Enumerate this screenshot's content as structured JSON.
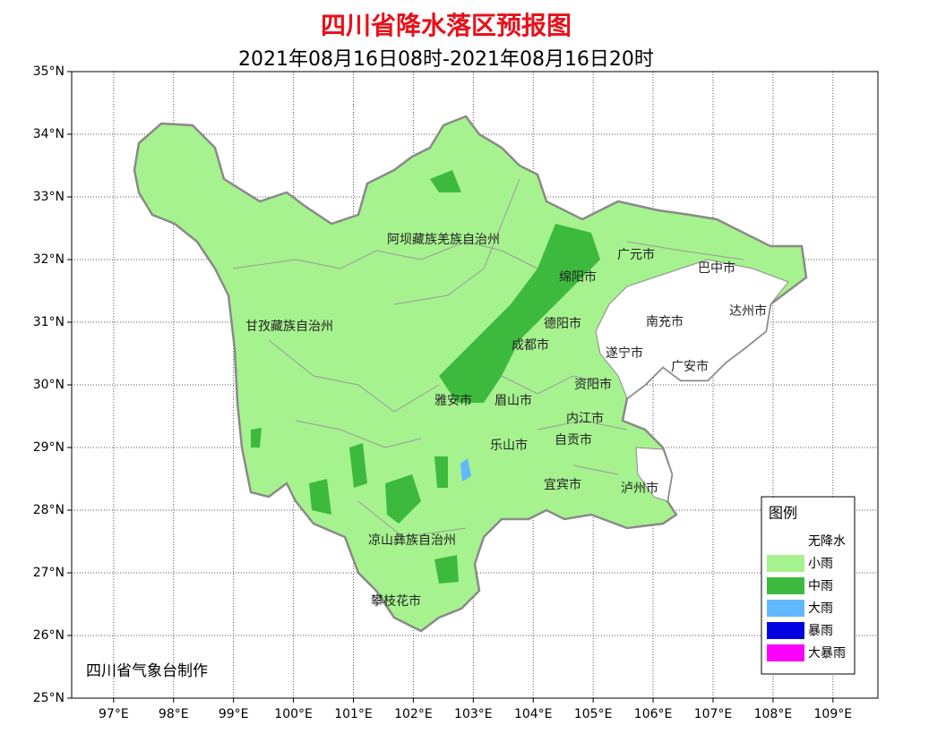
{
  "header": {
    "title": "四川省降水落区预报图",
    "subtitle": "2021年08月16日08时-2021年08月16日20时"
  },
  "map": {
    "xlim": [
      96.3,
      109.75
    ],
    "ylim": [
      25,
      35
    ],
    "grid": true,
    "xticks": [
      {
        "value": 97,
        "label": "97°E"
      },
      {
        "value": 98,
        "label": "98°E"
      },
      {
        "value": 99,
        "label": "99°E"
      },
      {
        "value": 100,
        "label": "100°E"
      },
      {
        "value": 101,
        "label": "101°E"
      },
      {
        "value": 102,
        "label": "102°E"
      },
      {
        "value": 103,
        "label": "103°E"
      },
      {
        "value": 104,
        "label": "104°E"
      },
      {
        "value": 105,
        "label": "105°E"
      },
      {
        "value": 106,
        "label": "106°E"
      },
      {
        "value": 107,
        "label": "107°E"
      },
      {
        "value": 108,
        "label": "108°E"
      },
      {
        "value": 109,
        "label": "109°E"
      }
    ],
    "yticks": [
      {
        "value": 25,
        "label": "25°N"
      },
      {
        "value": 26,
        "label": "26°N"
      },
      {
        "value": 27,
        "label": "27°N"
      },
      {
        "value": 28,
        "label": "28°N"
      },
      {
        "value": 29,
        "label": "29°N"
      },
      {
        "value": 30,
        "label": "30°N"
      },
      {
        "value": 31,
        "label": "31°N"
      },
      {
        "value": 32,
        "label": "32°N"
      },
      {
        "value": 33,
        "label": "33°N"
      },
      {
        "value": 34,
        "label": "34°N"
      },
      {
        "value": 35,
        "label": "35°N"
      }
    ]
  },
  "regions": [
    "阿坝藏族羌族自治州",
    "广元市",
    "巴中市",
    "绵阳市",
    "达州市",
    "甘孜藏族自治州",
    "德阳市",
    "南充市",
    "成都市",
    "遂宁市",
    "广安市",
    "资阳市",
    "雅安市",
    "眉山市",
    "内江市",
    "自贡市",
    "乐山市",
    "宜宾市",
    "泸州市",
    "凉山彝族自治州",
    "攀枝花市"
  ],
  "legend": {
    "title": "图例",
    "items": [
      {
        "label": "无降水",
        "color": "#ffffff"
      },
      {
        "label": "小雨",
        "color": "#a6f28f"
      },
      {
        "label": "中雨",
        "color": "#3dba3d"
      },
      {
        "label": "大雨",
        "color": "#61b8ff"
      },
      {
        "label": "暴雨",
        "color": "#0000e1"
      },
      {
        "label": "大暴雨",
        "color": "#fa00fa"
      }
    ]
  },
  "credit": "四川省气象台制作"
}
